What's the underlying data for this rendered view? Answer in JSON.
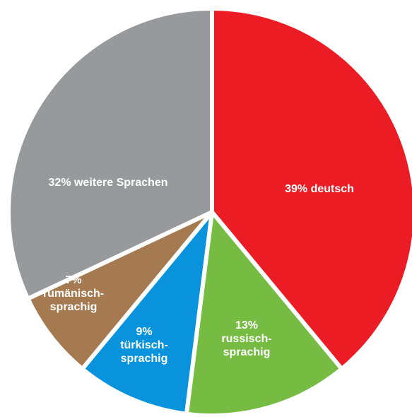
{
  "chart_data": {
    "type": "pie",
    "title": "",
    "slices": [
      {
        "label": [
          "39% deutsch"
        ],
        "value": 39,
        "color": "#ec1c24"
      },
      {
        "label": [
          "13%",
          "russisch-",
          "sprachig"
        ],
        "value": 13,
        "color": "#76bc43"
      },
      {
        "label": [
          "9%",
          "türkisch-",
          "sprachig"
        ],
        "value": 9,
        "color": "#0993dc"
      },
      {
        "label": [
          "7%",
          "rumänisch-",
          "sprachig"
        ],
        "value": 7,
        "color": "#a67a50"
      },
      {
        "label": [
          "32% weitere Sprachen"
        ],
        "value": 32,
        "color": "#98999c"
      }
    ]
  }
}
